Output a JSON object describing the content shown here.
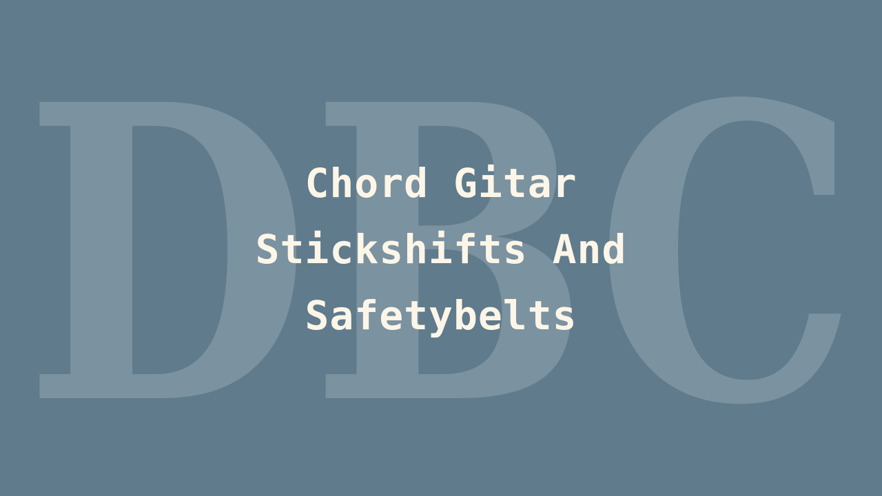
{
  "background_color": "#5f7b8c",
  "watermark": {
    "text": "DBC",
    "color": "#ffffff",
    "opacity": 0.18
  },
  "title": {
    "lines": [
      "Chord Gitar",
      "Stickshifts And",
      "Safetybelts"
    ],
    "color": "#fdf6e8"
  }
}
